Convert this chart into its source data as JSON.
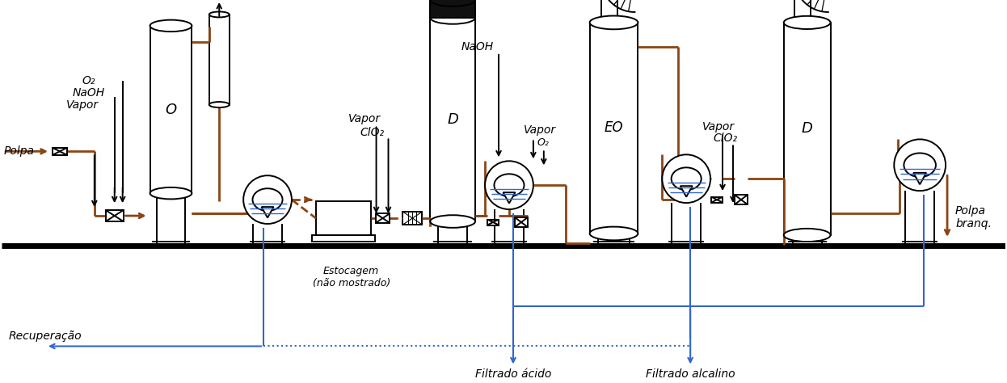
{
  "fig_width": 12.46,
  "fig_height": 4.74,
  "bg_color": "#ffffff",
  "brown": "#8B4513",
  "blue": "#3366CC",
  "black": "#000000",
  "gray_light": "#dddddd",
  "labels": {
    "polpa_in": "Polpa",
    "polpa_out": "Polpa\nbranq.",
    "naoh1": "NaOH",
    "o2_1": "O₂",
    "vapor1": "Vapor",
    "O_label": "O",
    "naoh2": "NaOH",
    "vapor2": "Vapor",
    "clo2_1": "ClO₂",
    "D_label1": "D",
    "o2_2": "O₂",
    "EO_label": "EO",
    "vapor3": "Vapor",
    "clo2_2": "ClO₂",
    "D_label2": "D",
    "estocagem": "Estocagem\n(não mostrado)",
    "recuperacao": "Recuperação",
    "filtrado_acido": "Filtrado ácido",
    "filtrado_alcalino": "Filtrado alcalino"
  }
}
